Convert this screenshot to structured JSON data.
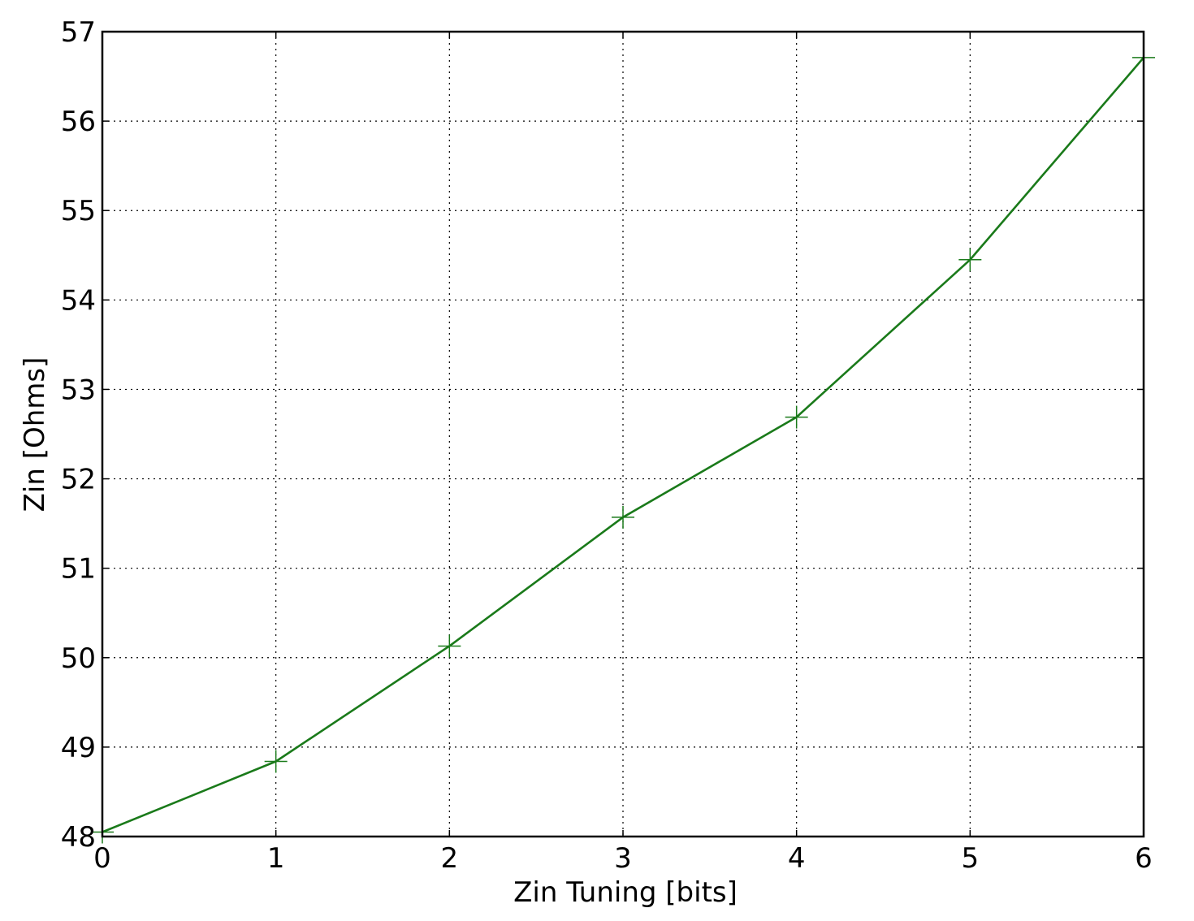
{
  "chart_data": {
    "type": "line",
    "title": "",
    "xlabel": "Zin Tuning [bits]",
    "ylabel": "Zin [Ohms]",
    "xlim": [
      0,
      6
    ],
    "ylim": [
      48,
      57
    ],
    "xticks": [
      0,
      1,
      2,
      3,
      4,
      5,
      6
    ],
    "yticks": [
      48,
      49,
      50,
      51,
      52,
      53,
      54,
      55,
      56,
      57
    ],
    "xtick_labels": [
      "0",
      "1",
      "2",
      "3",
      "4",
      "5",
      "6"
    ],
    "ytick_labels": [
      "48",
      "49",
      "50",
      "51",
      "52",
      "53",
      "54",
      "55",
      "56",
      "57"
    ],
    "grid": true,
    "grid_style": "dotted",
    "marker": "+",
    "series": [
      {
        "color": "#1a7a1a",
        "x": [
          0,
          1,
          2,
          3,
          4,
          5,
          6
        ],
        "y": [
          48.05,
          48.84,
          50.13,
          51.57,
          52.69,
          54.45,
          56.71
        ]
      }
    ]
  }
}
